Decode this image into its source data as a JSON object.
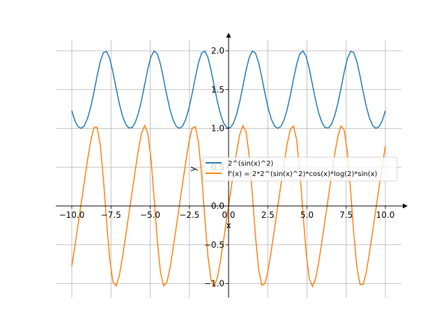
{
  "chart_data": {
    "type": "line",
    "title": "",
    "xlabel": "x",
    "ylabel": "y",
    "xlim": [
      -11,
      11.5
    ],
    "ylim": [
      -1.2,
      2.2
    ],
    "grid": true,
    "x_range": [
      -10,
      10
    ],
    "samples": 100,
    "x_ticks": [
      -10,
      -7.5,
      -5,
      -2.5,
      0,
      2.5,
      5,
      7.5,
      10
    ],
    "x_tick_labels": [
      "−10.0",
      "−7.5",
      "−5.0",
      "−2.5",
      "0.0",
      "2.5",
      "5.0",
      "7.5",
      "10.0"
    ],
    "y_ticks": [
      -1,
      -0.5,
      0,
      0.5,
      1,
      1.5,
      2
    ],
    "y_tick_labels": [
      "−1.0",
      "−0.5",
      "0.0",
      "0.5",
      "1.0",
      "1.5",
      "2.0"
    ],
    "legend_position": "center-right",
    "series": [
      {
        "name": "2^(sin(x)^2)",
        "color": "#1f77b4",
        "expr": "f"
      },
      {
        "name": "f'(x) = 2*2^(sin(x)^2)*cos(x)*log(2)*sin(x)",
        "color": "#ff7f0e",
        "expr": "df"
      }
    ]
  }
}
